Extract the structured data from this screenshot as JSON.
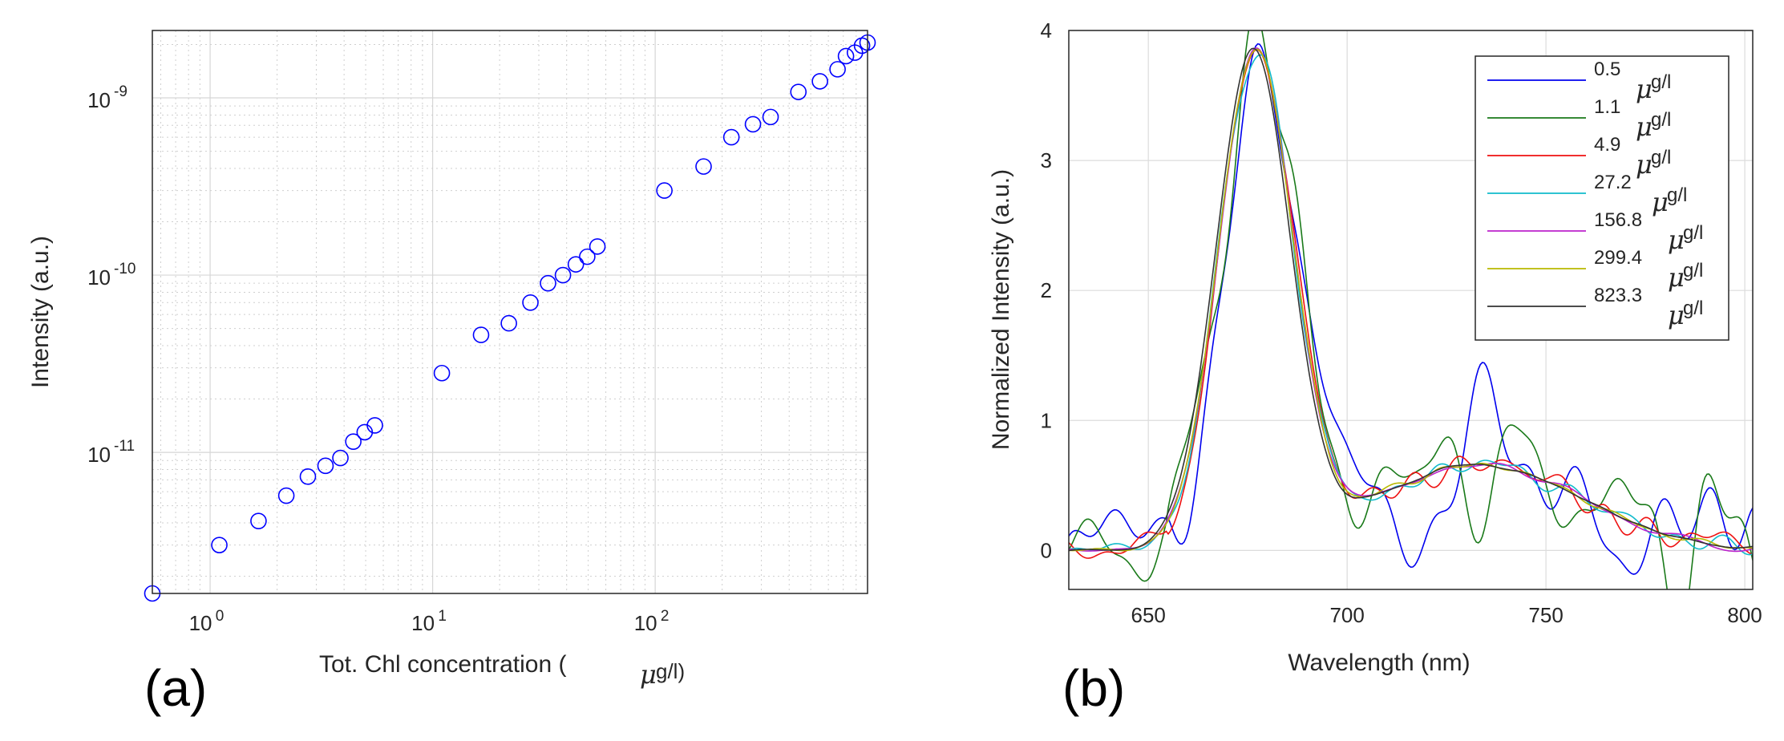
{
  "chart_data": [
    {
      "type": "scatter",
      "panel_label": "(a)",
      "xscale": "log",
      "yscale": "log",
      "xlim": [
        0.55,
        900
      ],
      "ylim": [
        1.6e-12,
        2.4e-09
      ],
      "xlabel_prefix": "Tot. Chl concentration (",
      "xlabel_unit_mu": "μ",
      "xlabel_unit_rest": "g/l)",
      "ylabel": "Intensity (a.u.)",
      "x_ticks": [
        {
          "base": "10",
          "exp": "0",
          "value": 1
        },
        {
          "base": "10",
          "exp": "1",
          "value": 10
        },
        {
          "base": "10",
          "exp": "2",
          "value": 100
        }
      ],
      "y_ticks": [
        {
          "base": "10",
          "exp": "-11",
          "value": 1e-11
        },
        {
          "base": "10",
          "exp": "-10",
          "value": 1e-10
        },
        {
          "base": "10",
          "exp": "-9",
          "value": 1e-09
        }
      ],
      "grid": true,
      "marker": "open-circle",
      "color": "#0000ff",
      "points": [
        [
          0.55,
          1.6e-12
        ],
        [
          1.1,
          3e-12
        ],
        [
          1.65,
          4.1e-12
        ],
        [
          2.2,
          5.7e-12
        ],
        [
          2.75,
          7.3e-12
        ],
        [
          3.3,
          8.4e-12
        ],
        [
          3.85,
          9.3e-12
        ],
        [
          4.4,
          1.15e-11
        ],
        [
          4.95,
          1.3e-11
        ],
        [
          5.5,
          1.42e-11
        ],
        [
          11,
          2.8e-11
        ],
        [
          16.5,
          4.6e-11
        ],
        [
          22,
          5.35e-11
        ],
        [
          27.5,
          7e-11
        ],
        [
          33,
          9e-11
        ],
        [
          38.5,
          1e-10
        ],
        [
          44,
          1.15e-10
        ],
        [
          49.5,
          1.27e-10
        ],
        [
          55,
          1.45e-10
        ],
        [
          110,
          3e-10
        ],
        [
          165,
          4.1e-10
        ],
        [
          220,
          6e-10
        ],
        [
          275,
          7.1e-10
        ],
        [
          330,
          7.8e-10
        ],
        [
          440,
          1.08e-09
        ],
        [
          550,
          1.24e-09
        ],
        [
          660,
          1.45e-09
        ],
        [
          720,
          1.72e-09
        ],
        [
          790,
          1.8e-09
        ],
        [
          850,
          1.97e-09
        ],
        [
          900,
          2.05e-09
        ]
      ]
    },
    {
      "type": "line",
      "panel_label": "(b)",
      "xlim": [
        630,
        802
      ],
      "ylim": [
        -0.3,
        4
      ],
      "xlabel": "Wavelength (nm)",
      "ylabel": "Normalized Intensity (a.u.)",
      "x_ticks": [
        "650",
        "700",
        "750",
        "800"
      ],
      "y_ticks": [
        "0",
        "1",
        "2",
        "3",
        "4"
      ],
      "grid": true,
      "legend_position": "top-right",
      "legend_unit_mu": "μ",
      "legend_unit_rest": "g/l",
      "series": [
        {
          "name": "0.5",
          "color": "#0000ee",
          "noise": 0.42,
          "peak": 3.68,
          "center": 677.5,
          "seed": 11
        },
        {
          "name": "1.1",
          "color": "#1a7a1a",
          "noise": 0.32,
          "peak": 3.88,
          "center": 678.0,
          "seed": 23
        },
        {
          "name": "4.9",
          "color": "#ee1111",
          "noise": 0.14,
          "peak": 3.8,
          "center": 677.3,
          "seed": 37
        },
        {
          "name": "27.2",
          "color": "#11bbcc",
          "noise": 0.07,
          "peak": 3.78,
          "center": 677.0,
          "seed": 41
        },
        {
          "name": "156.8",
          "color": "#bb22cc",
          "noise": 0.035,
          "peak": 3.8,
          "center": 677.0,
          "seed": 53
        },
        {
          "name": "299.4",
          "color": "#b8b800",
          "noise": 0.025,
          "peak": 3.8,
          "center": 677.0,
          "seed": 61
        },
        {
          "name": "823.3",
          "color": "#333333",
          "noise": 0.012,
          "peak": 3.8,
          "center": 676.3,
          "seed": 71
        }
      ]
    }
  ]
}
